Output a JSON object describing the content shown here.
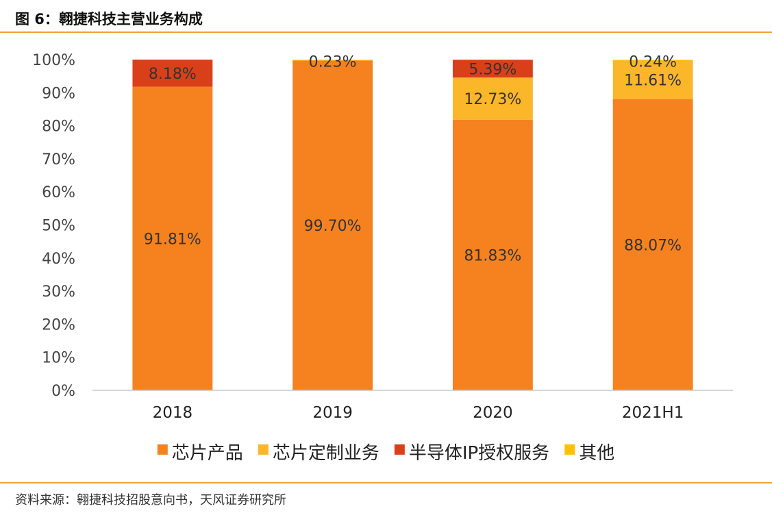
{
  "figure": {
    "title": "图 6：翱捷科技主营业务构成",
    "source": "资料来源：翱捷科技招股意向书，天风证券研究所"
  },
  "chart_data": {
    "type": "bar",
    "stacked": true,
    "categories": [
      "2018",
      "2019",
      "2020",
      "2021H1"
    ],
    "series": [
      {
        "name": "芯片产品",
        "color": "#f5821f",
        "values": [
          91.81,
          99.7,
          81.83,
          88.07
        ],
        "labels": [
          "91.81%",
          "99.70%",
          "81.83%",
          "88.07%"
        ]
      },
      {
        "name": "芯片定制业务",
        "color": "#fbb62a",
        "values": [
          0,
          0,
          12.73,
          11.61
        ],
        "labels": [
          "",
          "",
          "12.73%",
          "11.61%"
        ]
      },
      {
        "name": "半导体IP授权服务",
        "color": "#d9401a",
        "values": [
          8.18,
          0,
          5.39,
          0
        ],
        "labels": [
          "8.18%",
          "",
          "5.39%",
          ""
        ]
      },
      {
        "name": "其他",
        "color": "#ffc000",
        "values": [
          0,
          0.23,
          0,
          0.24
        ],
        "labels": [
          "",
          "0.23%",
          "",
          "0.24%"
        ]
      }
    ],
    "ylim": [
      0,
      100
    ],
    "yticks": [
      "0%",
      "10%",
      "20%",
      "30%",
      "40%",
      "50%",
      "60%",
      "70%",
      "80%",
      "90%",
      "100%"
    ],
    "legend_position": "bottom",
    "grid": false
  }
}
